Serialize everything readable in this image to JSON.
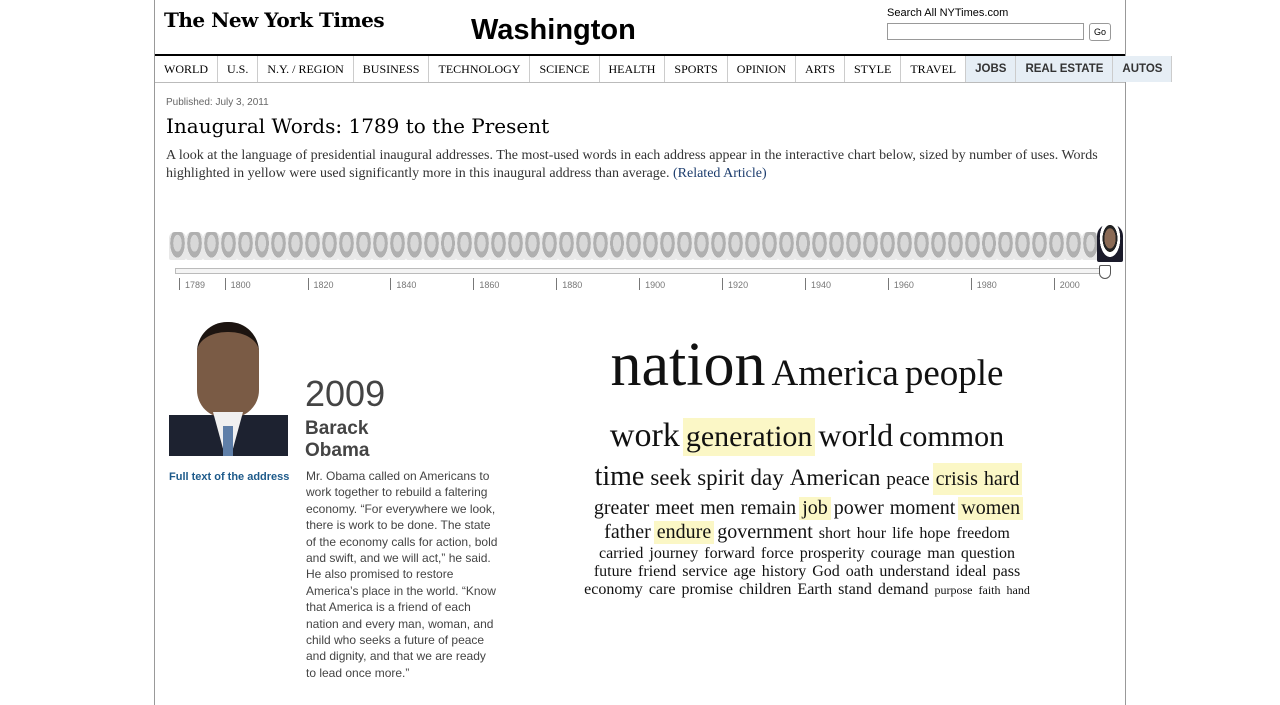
{
  "masthead": {
    "logo": "The New York Times",
    "section": "Washington",
    "search_label": "Search All NYTimes.com",
    "search_value": "",
    "search_button": "Go"
  },
  "nav": [
    {
      "label": "WORLD",
      "style": "main"
    },
    {
      "label": "U.S.",
      "style": "main"
    },
    {
      "label": "N.Y. / REGION",
      "style": "main"
    },
    {
      "label": "BUSINESS",
      "style": "main"
    },
    {
      "label": "TECHNOLOGY",
      "style": "main"
    },
    {
      "label": "SCIENCE",
      "style": "main"
    },
    {
      "label": "HEALTH",
      "style": "main"
    },
    {
      "label": "SPORTS",
      "style": "main"
    },
    {
      "label": "OPINION",
      "style": "main"
    },
    {
      "label": "ARTS",
      "style": "main"
    },
    {
      "label": "STYLE",
      "style": "main"
    },
    {
      "label": "TRAVEL",
      "style": "main"
    },
    {
      "label": "JOBS",
      "style": "alt"
    },
    {
      "label": "REAL ESTATE",
      "style": "alt"
    },
    {
      "label": "AUTOS",
      "style": "alt"
    }
  ],
  "article": {
    "published": "Published: July 3, 2011",
    "headline": "Inaugural Words: 1789 to the Present",
    "deck": "A look at the language of presidential inaugural addresses. The most-used words in each address appear in the interactive chart below, sized by number of uses. Words highlighted in yellow were used significantly more in this inaugural address than average.",
    "related_link": "(Related Article)"
  },
  "timeline": {
    "years": [
      "1789",
      "1800",
      "1820",
      "1840",
      "1860",
      "1880",
      "1900",
      "1920",
      "1940",
      "1960",
      "1980",
      "2000"
    ],
    "range": [
      1789,
      2009
    ],
    "selected_year": 2009,
    "face_count": 55,
    "face_icon": "president-portrait-icon"
  },
  "president": {
    "portrait_icon": "president-portrait",
    "year": "2009",
    "first_name": "Barack",
    "last_name": "Obama",
    "full_text_link": "Full text of the address",
    "summary": "Mr. Obama called on Americans to work together to rebuild a faltering economy. “For everywhere we look,  there is work to be done.  The state of the economy calls for action, bold and swift, and we will act,” he said. He also promised to restore America’s place in the world. “Know that America is a friend of each nation  and every man, woman, and child who seeks a future  of peace and dignity, and that we are ready to lead once more.”"
  },
  "word_cloud": {
    "highlight_color": "#fbf7c6",
    "lines": [
      [
        {
          "w": "nation",
          "s": 62
        },
        {
          "w": "America",
          "s": 37
        },
        {
          "w": "people",
          "s": 37
        }
      ],
      [
        {
          "w": "work",
          "s": 34
        },
        {
          "w": "generation",
          "s": 30,
          "hl": true
        },
        {
          "w": "world",
          "s": 32
        },
        {
          "w": "common",
          "s": 30
        }
      ],
      [
        {
          "w": "time",
          "s": 28
        },
        {
          "w": "seek",
          "s": 23
        },
        {
          "w": "spirit",
          "s": 23
        },
        {
          "w": "day",
          "s": 23
        },
        {
          "w": "American",
          "s": 23
        },
        {
          "w": "peace",
          "s": 19
        },
        {
          "w": "crisis",
          "s": 20,
          "hl": true
        },
        {
          "w": "hard",
          "s": 20,
          "hl": true
        }
      ],
      [
        {
          "w": "greater",
          "s": 20
        },
        {
          "w": "meet",
          "s": 20
        },
        {
          "w": "men",
          "s": 20
        },
        {
          "w": "remain",
          "s": 20
        },
        {
          "w": "job",
          "s": 20,
          "hl": true
        },
        {
          "w": "power",
          "s": 20
        },
        {
          "w": "moment",
          "s": 20
        },
        {
          "w": "women",
          "s": 20,
          "hl": true
        }
      ],
      [
        {
          "w": "father",
          "s": 20
        },
        {
          "w": "endure",
          "s": 20,
          "hl": true
        },
        {
          "w": "government",
          "s": 20
        },
        {
          "w": "short",
          "s": 16
        },
        {
          "w": "hour",
          "s": 16
        },
        {
          "w": "life",
          "s": 16
        },
        {
          "w": "hope",
          "s": 16
        },
        {
          "w": "freedom",
          "s": 16
        }
      ],
      [
        {
          "w": "carried",
          "s": 16
        },
        {
          "w": "journey",
          "s": 16
        },
        {
          "w": "forward",
          "s": 16
        },
        {
          "w": "force",
          "s": 16
        },
        {
          "w": "prosperity",
          "s": 16
        },
        {
          "w": "courage",
          "s": 16
        },
        {
          "w": "man",
          "s": 16
        },
        {
          "w": "question",
          "s": 16
        }
      ],
      [
        {
          "w": "future",
          "s": 16
        },
        {
          "w": "friend",
          "s": 16
        },
        {
          "w": "service",
          "s": 16
        },
        {
          "w": "age",
          "s": 16
        },
        {
          "w": "history",
          "s": 16
        },
        {
          "w": "God",
          "s": 16
        },
        {
          "w": "oath",
          "s": 16
        },
        {
          "w": "understand",
          "s": 16
        },
        {
          "w": "ideal",
          "s": 16
        },
        {
          "w": "pass",
          "s": 16
        }
      ],
      [
        {
          "w": "economy",
          "s": 16
        },
        {
          "w": "care",
          "s": 16
        },
        {
          "w": "promise",
          "s": 16
        },
        {
          "w": "children",
          "s": 16
        },
        {
          "w": "Earth",
          "s": 16
        },
        {
          "w": "stand",
          "s": 16
        },
        {
          "w": "demand",
          "s": 16
        },
        {
          "w": "purpose",
          "s": 12
        },
        {
          "w": "faith",
          "s": 12
        },
        {
          "w": "hand",
          "s": 12
        }
      ]
    ]
  }
}
